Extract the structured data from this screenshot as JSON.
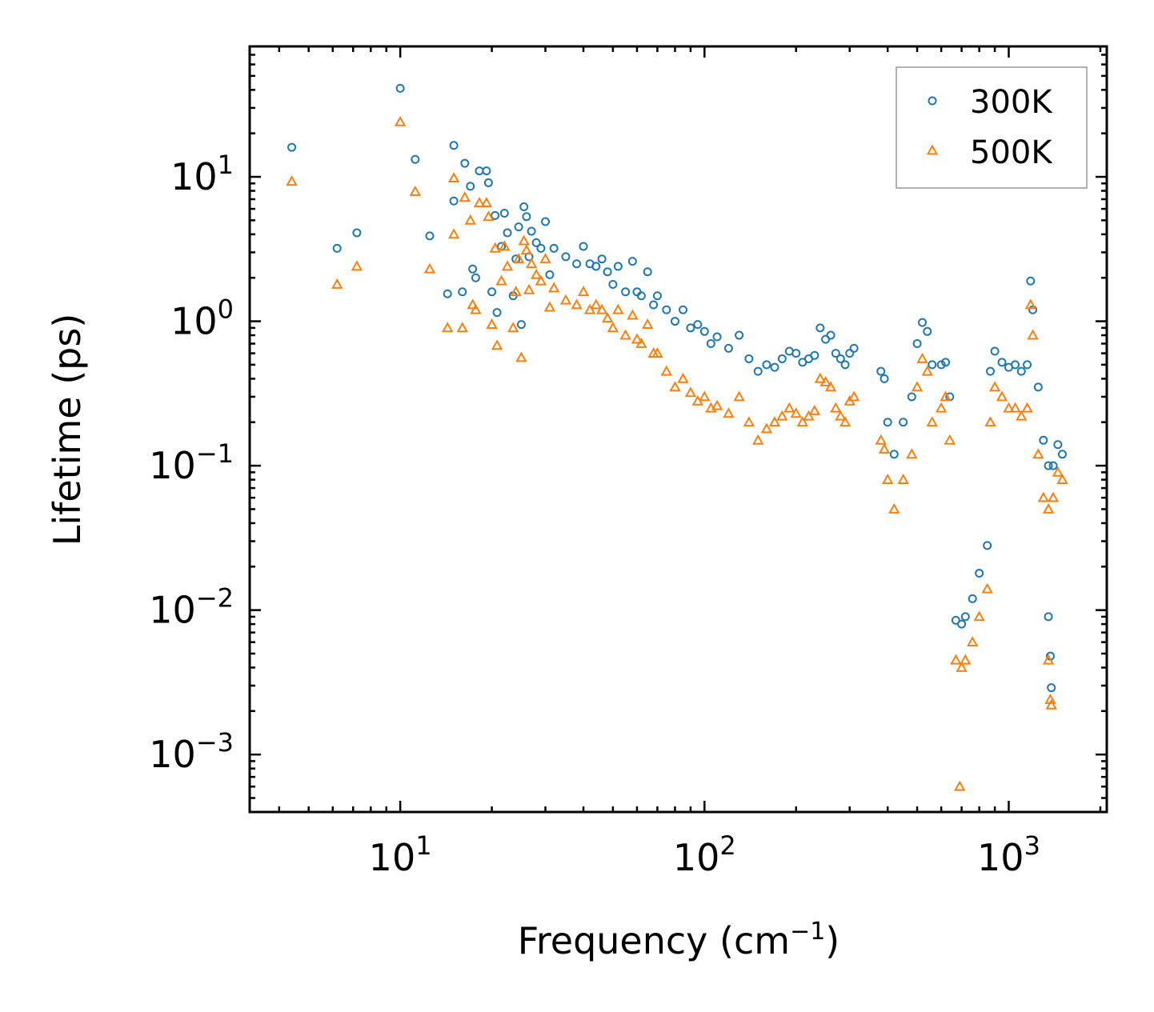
{
  "chart_data": {
    "type": "scatter",
    "title": "",
    "xlabel": "Frequency (cm",
    "xlabel_sup": "−1",
    "xlabel_suffix": ")",
    "ylabel": "Lifetime (ps)",
    "xscale": "log",
    "yscale": "log",
    "xlim": [
      3.2,
      2100
    ],
    "ylim": [
      0.0004,
      80
    ],
    "x_ticks": [
      {
        "value": 10,
        "base": "10",
        "exp": "1"
      },
      {
        "value": 100,
        "base": "10",
        "exp": "2"
      },
      {
        "value": 1000,
        "base": "10",
        "exp": "3"
      }
    ],
    "y_ticks": [
      {
        "value": 10,
        "base": "10",
        "exp": "1"
      },
      {
        "value": 1,
        "base": "10",
        "exp": "0"
      },
      {
        "value": 0.1,
        "base": "10",
        "exp": "−1"
      },
      {
        "value": 0.01,
        "base": "10",
        "exp": "−2"
      },
      {
        "value": 0.001,
        "base": "10",
        "exp": "−3"
      }
    ],
    "legend": {
      "placement": "top-right"
    },
    "series": [
      {
        "name": "300K",
        "marker": "circle",
        "color": "#1f77b4",
        "points": [
          [
            4.4,
            16
          ],
          [
            6.2,
            3.2
          ],
          [
            7.2,
            4.1
          ],
          [
            10,
            41
          ],
          [
            11.2,
            13.2
          ],
          [
            12.5,
            3.9
          ],
          [
            14.3,
            1.55
          ],
          [
            15,
            16.5
          ],
          [
            15,
            6.8
          ],
          [
            16,
            1.6
          ],
          [
            16.3,
            12.4
          ],
          [
            17,
            8.6
          ],
          [
            17.3,
            2.3
          ],
          [
            17.7,
            2
          ],
          [
            18.2,
            11
          ],
          [
            19.2,
            11
          ],
          [
            19.5,
            9.1
          ],
          [
            20,
            1.6
          ],
          [
            20.5,
            5.4
          ],
          [
            20.8,
            1.15
          ],
          [
            21.5,
            3.3
          ],
          [
            22,
            5.6
          ],
          [
            22.5,
            4.1
          ],
          [
            23.5,
            1.5
          ],
          [
            24,
            2.7
          ],
          [
            24.5,
            4.5
          ],
          [
            25,
            0.95
          ],
          [
            25.5,
            6.2
          ],
          [
            26,
            5.3
          ],
          [
            26.5,
            2.8
          ],
          [
            27,
            4.2
          ],
          [
            28,
            3.5
          ],
          [
            29,
            3.2
          ],
          [
            30,
            4.9
          ],
          [
            31,
            2.1
          ],
          [
            32,
            3.2
          ],
          [
            35,
            2.8
          ],
          [
            38,
            2.5
          ],
          [
            40,
            3.3
          ],
          [
            42,
            2.5
          ],
          [
            44,
            2.4
          ],
          [
            46,
            2.7
          ],
          [
            48,
            2.2
          ],
          [
            50,
            1.8
          ],
          [
            52,
            2.4
          ],
          [
            55,
            1.6
          ],
          [
            58,
            2.6
          ],
          [
            60,
            1.6
          ],
          [
            62,
            1.5
          ],
          [
            65,
            2.2
          ],
          [
            68,
            1.3
          ],
          [
            70,
            1.5
          ],
          [
            75,
            1.2
          ],
          [
            80,
            1.0
          ],
          [
            85,
            1.2
          ],
          [
            90,
            0.9
          ],
          [
            95,
            0.95
          ],
          [
            100,
            0.85
          ],
          [
            105,
            0.7
          ],
          [
            110,
            0.78
          ],
          [
            120,
            0.65
          ],
          [
            130,
            0.8
          ],
          [
            140,
            0.55
          ],
          [
            150,
            0.45
          ],
          [
            160,
            0.5
          ],
          [
            170,
            0.48
          ],
          [
            180,
            0.55
          ],
          [
            190,
            0.62
          ],
          [
            200,
            0.6
          ],
          [
            210,
            0.52
          ],
          [
            220,
            0.55
          ],
          [
            230,
            0.58
          ],
          [
            240,
            0.9
          ],
          [
            250,
            0.75
          ],
          [
            260,
            0.8
          ],
          [
            270,
            0.6
          ],
          [
            280,
            0.55
          ],
          [
            290,
            0.5
          ],
          [
            300,
            0.6
          ],
          [
            310,
            0.65
          ],
          [
            380,
            0.45
          ],
          [
            390,
            0.4
          ],
          [
            400,
            0.2
          ],
          [
            420,
            0.12
          ],
          [
            450,
            0.2
          ],
          [
            480,
            0.3
          ],
          [
            500,
            0.7
          ],
          [
            520,
            0.98
          ],
          [
            540,
            0.85
          ],
          [
            560,
            0.5
          ],
          [
            600,
            0.5
          ],
          [
            620,
            0.52
          ],
          [
            640,
            0.3
          ],
          [
            870,
            0.45
          ],
          [
            900,
            0.62
          ],
          [
            950,
            0.52
          ],
          [
            1000,
            0.48
          ],
          [
            1050,
            0.5
          ],
          [
            1100,
            0.45
          ],
          [
            1150,
            0.5
          ],
          [
            1180,
            1.9
          ],
          [
            1200,
            1.2
          ],
          [
            1250,
            0.35
          ],
          [
            1300,
            0.15
          ],
          [
            1350,
            0.1
          ],
          [
            1400,
            0.1
          ],
          [
            1450,
            0.14
          ],
          [
            1500,
            0.12
          ],
          [
            670,
            0.0085
          ],
          [
            700,
            0.008
          ],
          [
            720,
            0.009
          ],
          [
            760,
            0.012
          ],
          [
            800,
            0.018
          ],
          [
            850,
            0.028
          ],
          [
            1350,
            0.009
          ],
          [
            1370,
            0.0048
          ],
          [
            1380,
            0.0029
          ]
        ]
      },
      {
        "name": "500K",
        "marker": "triangle",
        "color": "#ff7f0e",
        "points": [
          [
            4.4,
            9.3
          ],
          [
            6.2,
            1.8
          ],
          [
            7.2,
            2.4
          ],
          [
            10,
            24
          ],
          [
            11.2,
            7.9
          ],
          [
            12.5,
            2.3
          ],
          [
            14.3,
            0.9
          ],
          [
            15,
            9.8
          ],
          [
            15,
            4
          ],
          [
            16,
            0.9
          ],
          [
            16.3,
            7.2
          ],
          [
            17,
            5
          ],
          [
            17.3,
            1.3
          ],
          [
            17.7,
            1.2
          ],
          [
            18.2,
            6.6
          ],
          [
            19.2,
            6.6
          ],
          [
            19.5,
            5.3
          ],
          [
            20,
            0.95
          ],
          [
            20.5,
            3.2
          ],
          [
            20.8,
            0.68
          ],
          [
            21.5,
            1.9
          ],
          [
            22,
            3.3
          ],
          [
            22.5,
            2.4
          ],
          [
            23.5,
            0.9
          ],
          [
            24,
            1.6
          ],
          [
            24.5,
            2.7
          ],
          [
            25,
            0.56
          ],
          [
            25.5,
            3.6
          ],
          [
            26,
            3.1
          ],
          [
            26.5,
            1.65
          ],
          [
            27,
            2.5
          ],
          [
            28,
            2.1
          ],
          [
            29,
            1.9
          ],
          [
            30,
            2.7
          ],
          [
            31,
            1.25
          ],
          [
            32,
            1.7
          ],
          [
            35,
            1.4
          ],
          [
            38,
            1.3
          ],
          [
            40,
            1.6
          ],
          [
            42,
            1.2
          ],
          [
            44,
            1.3
          ],
          [
            46,
            1.2
          ],
          [
            48,
            1.05
          ],
          [
            50,
            0.9
          ],
          [
            52,
            1.2
          ],
          [
            55,
            0.8
          ],
          [
            58,
            1.1
          ],
          [
            60,
            0.75
          ],
          [
            62,
            0.7
          ],
          [
            65,
            0.95
          ],
          [
            68,
            0.6
          ],
          [
            70,
            0.6
          ],
          [
            75,
            0.45
          ],
          [
            80,
            0.35
          ],
          [
            85,
            0.4
          ],
          [
            90,
            0.32
          ],
          [
            95,
            0.28
          ],
          [
            100,
            0.3
          ],
          [
            105,
            0.25
          ],
          [
            110,
            0.26
          ],
          [
            120,
            0.23
          ],
          [
            130,
            0.3
          ],
          [
            140,
            0.2
          ],
          [
            150,
            0.15
          ],
          [
            160,
            0.18
          ],
          [
            170,
            0.2
          ],
          [
            180,
            0.22
          ],
          [
            190,
            0.25
          ],
          [
            200,
            0.23
          ],
          [
            210,
            0.2
          ],
          [
            220,
            0.22
          ],
          [
            230,
            0.24
          ],
          [
            240,
            0.4
          ],
          [
            250,
            0.38
          ],
          [
            260,
            0.35
          ],
          [
            270,
            0.25
          ],
          [
            280,
            0.22
          ],
          [
            290,
            0.2
          ],
          [
            300,
            0.28
          ],
          [
            310,
            0.3
          ],
          [
            380,
            0.15
          ],
          [
            390,
            0.13
          ],
          [
            400,
            0.08
          ],
          [
            420,
            0.05
          ],
          [
            450,
            0.08
          ],
          [
            480,
            0.12
          ],
          [
            500,
            0.35
          ],
          [
            520,
            0.55
          ],
          [
            540,
            0.45
          ],
          [
            560,
            0.2
          ],
          [
            600,
            0.25
          ],
          [
            620,
            0.3
          ],
          [
            640,
            0.15
          ],
          [
            870,
            0.2
          ],
          [
            900,
            0.35
          ],
          [
            950,
            0.3
          ],
          [
            1000,
            0.25
          ],
          [
            1050,
            0.25
          ],
          [
            1100,
            0.22
          ],
          [
            1150,
            0.25
          ],
          [
            1180,
            1.3
          ],
          [
            1200,
            0.8
          ],
          [
            1250,
            0.12
          ],
          [
            1300,
            0.06
          ],
          [
            1350,
            0.05
          ],
          [
            1400,
            0.06
          ],
          [
            1450,
            0.09
          ],
          [
            1500,
            0.08
          ],
          [
            670,
            0.0045
          ],
          [
            700,
            0.004
          ],
          [
            720,
            0.0045
          ],
          [
            760,
            0.006
          ],
          [
            800,
            0.009
          ],
          [
            850,
            0.014
          ],
          [
            1350,
            0.0045
          ],
          [
            1370,
            0.0024
          ],
          [
            1380,
            0.0022
          ],
          [
            690,
            0.0006
          ]
        ]
      }
    ]
  }
}
